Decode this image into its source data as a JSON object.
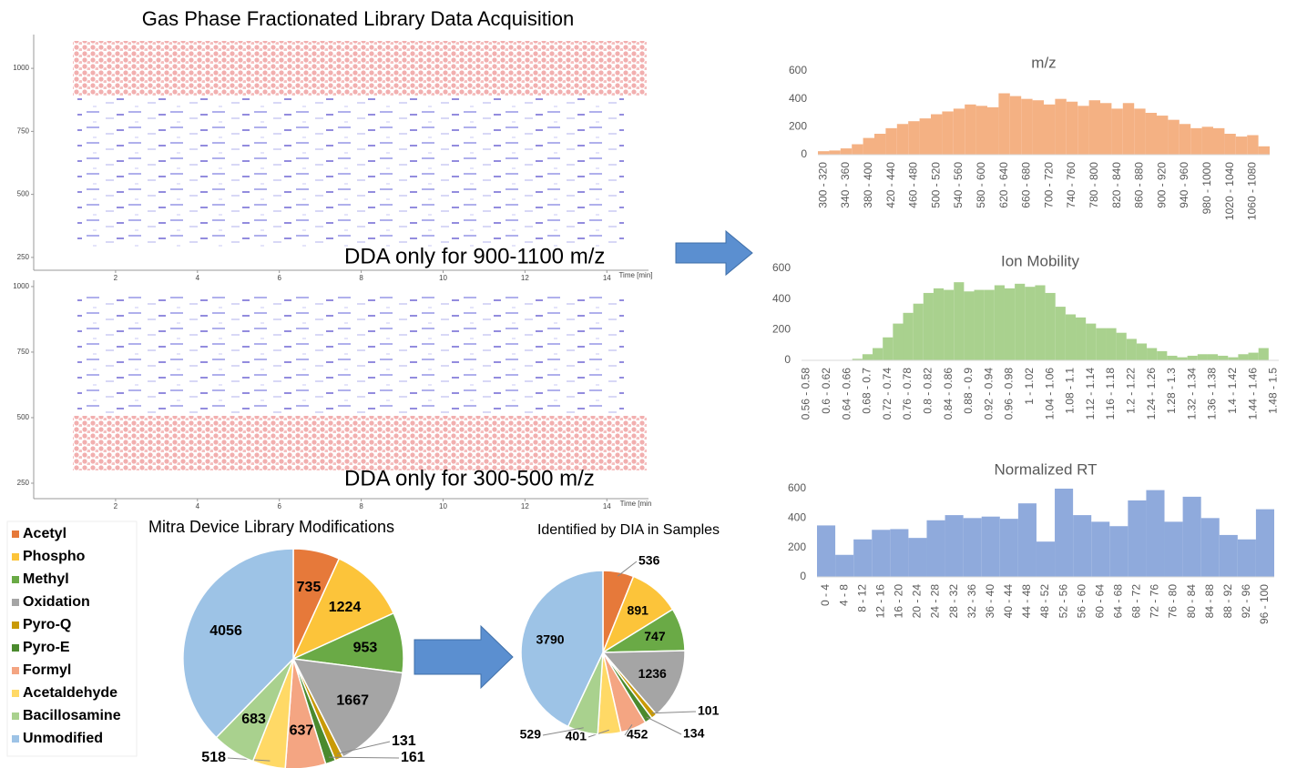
{
  "title": "Gas Phase Fractionated Library Data Acquisition",
  "chart_data": [
    {
      "type": "map",
      "annotation": "DDA only for 900-1100 m/z",
      "x_label": "Time [min]",
      "xlim": [
        0,
        14.35
      ],
      "xticks": [
        2,
        4,
        6,
        8,
        10,
        12,
        14
      ],
      "ylim": [
        199,
        1134
      ],
      "yticks": [
        250,
        500,
        750,
        1000
      ]
    },
    {
      "type": "map",
      "annotation": "DDA only for 300-500 m/z",
      "x_label": "Time [min",
      "xlim": [
        0,
        14.35
      ],
      "xticks": [
        2,
        4,
        6,
        8,
        10,
        12,
        14
      ],
      "ylim": [
        191,
        1024
      ],
      "yticks": [
        250,
        500,
        750,
        1000
      ]
    },
    {
      "type": "bar",
      "title": "m/z",
      "color": "#f4b183",
      "ylim": [
        0,
        600
      ],
      "yticks": [
        0,
        200,
        400,
        600
      ],
      "categories": [
        "300 - 320",
        null,
        "340 - 360",
        null,
        "380 - 400",
        null,
        "420 - 440",
        null,
        "460 - 480",
        null,
        "500 - 520",
        null,
        "540 - 560",
        null,
        "580 - 600",
        null,
        "620 - 640",
        null,
        "660 - 680",
        null,
        "700 - 720",
        null,
        "740 - 760",
        null,
        "780 - 800",
        null,
        "820 - 840",
        null,
        "860 - 880",
        null,
        "900 - 920",
        null,
        "940 - 960",
        null,
        "980 - 1000",
        null,
        "1020 - 1040",
        null,
        "1060 - 1080",
        null
      ],
      "values": [
        25,
        30,
        45,
        75,
        120,
        150,
        190,
        220,
        240,
        260,
        290,
        310,
        330,
        360,
        350,
        340,
        440,
        420,
        400,
        390,
        360,
        400,
        380,
        350,
        390,
        370,
        330,
        370,
        330,
        300,
        280,
        250,
        220,
        190,
        200,
        190,
        150,
        130,
        140,
        60
      ]
    },
    {
      "type": "bar",
      "title": "Ion Mobility",
      "color": "#a9d18e",
      "ylim": [
        0,
        600
      ],
      "yticks": [
        0,
        200,
        400,
        600
      ],
      "categories": [
        "0.56 - 0.58",
        null,
        "0.6 - 0.62",
        null,
        "0.64 - 0.66",
        null,
        "0.68 - 0.7",
        null,
        "0.72 - 0.74",
        null,
        "0.76 - 0.78",
        null,
        "0.8 - 0.82",
        null,
        "0.84 - 0.86",
        null,
        "0.88 - 0.9",
        null,
        "0.92 - 0.94",
        null,
        "0.96 - 0.98",
        null,
        "1 - 1.02",
        null,
        "1.04 - 1.06",
        null,
        "1.08 - 1.1",
        null,
        "1.12 - 1.14",
        null,
        "1.16 - 1.18",
        null,
        "1.2 - 1.22",
        null,
        "1.24 - 1.26",
        null,
        "1.28 - 1.3",
        null,
        "1.32 - 1.34",
        null,
        "1.36 - 1.38",
        null,
        "1.4 - 1.42",
        null,
        "1.44 - 1.46",
        null,
        "1.48 - 1.5"
      ],
      "values": [
        0,
        0,
        0,
        0,
        0,
        10,
        40,
        80,
        150,
        240,
        310,
        370,
        440,
        470,
        460,
        510,
        450,
        460,
        460,
        490,
        470,
        500,
        480,
        490,
        440,
        350,
        300,
        280,
        240,
        210,
        210,
        180,
        140,
        110,
        80,
        60,
        30,
        20,
        30,
        40,
        40,
        30,
        20,
        40,
        50,
        80,
        0
      ]
    },
    {
      "type": "bar",
      "title": "Normalized RT",
      "color": "#8faadc",
      "ylim": [
        0,
        600
      ],
      "yticks": [
        0,
        200,
        400,
        600
      ],
      "categories": [
        "0 - 4",
        "4 - 8",
        "8 - 12",
        "12 - 16",
        "16 - 20",
        "20 - 24",
        "24 - 28",
        "28 - 32",
        "32 - 36",
        "36 - 40",
        "40 - 44",
        "44 - 48",
        "48 - 52",
        "52 - 56",
        "56 - 60",
        "60 - 64",
        "64 - 68",
        "68 - 72",
        "72 - 76",
        "76 - 80",
        "80 - 84",
        "84 - 88",
        "88 - 92",
        "92 - 96",
        "96 - 100"
      ],
      "values": [
        350,
        150,
        255,
        320,
        325,
        265,
        385,
        420,
        400,
        410,
        395,
        500,
        240,
        600,
        420,
        375,
        345,
        520,
        590,
        375,
        545,
        400,
        285,
        255,
        460
      ]
    },
    {
      "type": "pie",
      "title": "Mitra Device Library Modifications",
      "categories": [
        "Acetyl",
        "Phospho",
        "Methyl",
        "Oxidation",
        "Pyro-Q",
        "Pyro-E",
        "Formyl",
        "Acetaldehyde",
        "Bacillosamine",
        "Unmodified"
      ],
      "colors": [
        "#e6793a",
        "#fcc43a",
        "#6aaa46",
        "#a5a5a5",
        "#c99a06",
        "#4b8a2e",
        "#f4a582",
        "#ffd966",
        "#a9d18e",
        "#9dc3e6"
      ],
      "values": [
        735,
        1224,
        953,
        1667,
        131,
        161,
        637,
        518,
        683,
        4056
      ]
    },
    {
      "type": "pie",
      "title": "Identified by DIA in Samples",
      "values": [
        536,
        891,
        747,
        1236,
        101,
        134,
        452,
        401,
        529,
        3790
      ]
    }
  ]
}
